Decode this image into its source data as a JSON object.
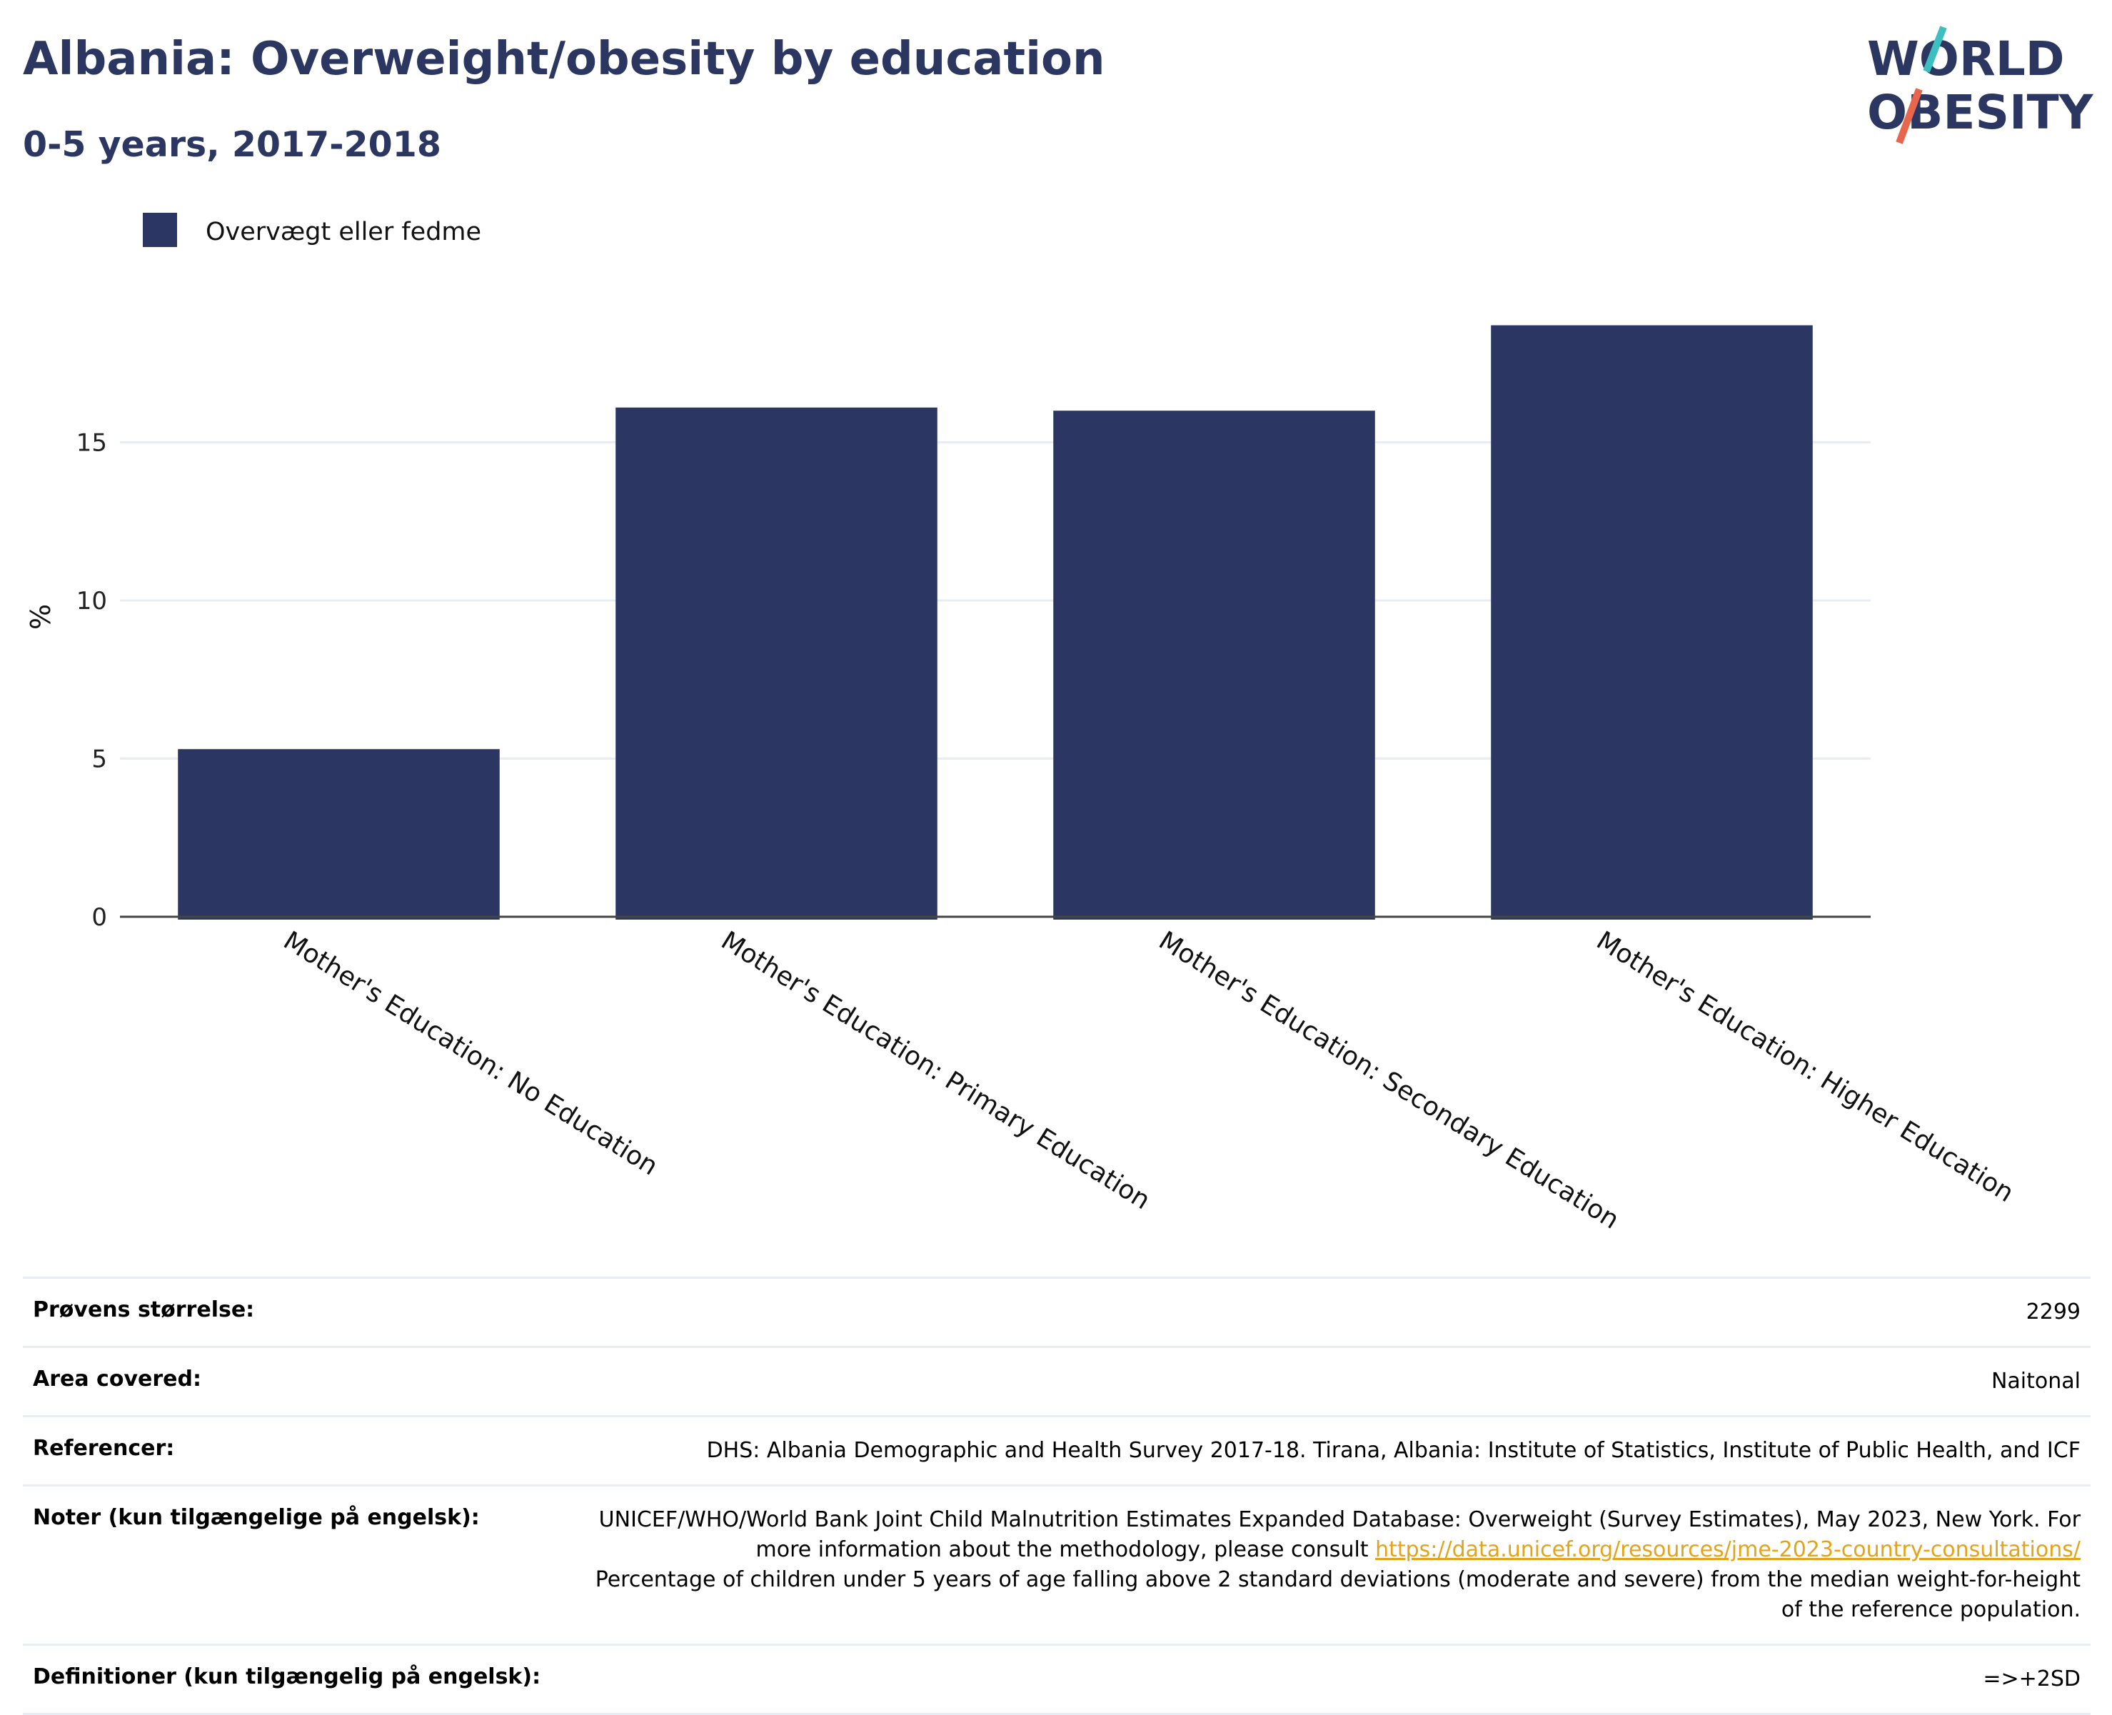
{
  "header": {
    "title": "Albania: Overweight/obesity by education",
    "subtitle": "0-5 years, 2017-2018"
  },
  "logo": {
    "line1": "WORLD",
    "line2": "OBESITY",
    "accent_colors": [
      "#3dbfc0",
      "#e8664e"
    ]
  },
  "colors": {
    "bar": "#2b3762",
    "grid": "#e8ecf4",
    "axis": "#444444"
  },
  "chart_data": {
    "type": "bar",
    "categories": [
      "Mother's Education: No Education",
      "Mother's Education: Primary Education",
      "Mother's Education: Secondary Education",
      "Mother's Education: Higher Education"
    ],
    "series": [
      {
        "name": "Overvægt eller fedme",
        "values": [
          5.3,
          16.1,
          16.0,
          18.7
        ]
      }
    ],
    "ylabel": "%",
    "yticks": [
      0,
      5,
      10,
      15
    ],
    "ylim": [
      0,
      20
    ],
    "grid": true,
    "legend": "top-left"
  },
  "info": {
    "sample_size": {
      "label": "Prøvens størrelse:",
      "value": "2299"
    },
    "area": {
      "label": "Area covered:",
      "value": "Naitonal"
    },
    "references": {
      "label": "Referencer:",
      "value": "DHS: Albania Demographic and Health Survey 2017-18. Tirana, Albania: Institute of Statistics, Institute of Public Health, and ICF"
    },
    "notes": {
      "label": "Noter (kun tilgængelige på engelsk):",
      "text_before": "UNICEF/WHO/World Bank Joint Child Malnutrition Estimates Expanded Database: Overweight (Survey Estimates), May 2023, New York. For more information about the methodology, please consult ",
      "link": "https://data.unicef.org/resources/jme-2023-country-consultations/",
      "text_after": "Percentage of children under 5 years of age falling above 2 standard deviations (moderate and severe) from the median weight-for-height of the reference population."
    },
    "definitions": {
      "label": "Definitioner (kun tilgængelig på engelsk):",
      "value": "=>+2SD"
    }
  }
}
